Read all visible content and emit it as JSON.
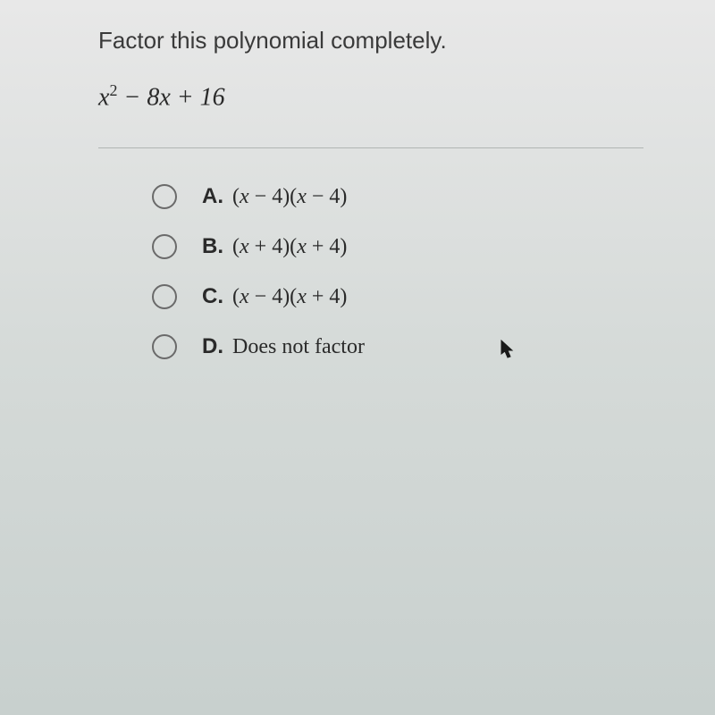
{
  "question": {
    "prompt": "Factor this polynomial completely.",
    "polynomial_html": "<span class='var'>x</span><span class='sup'>2</span> − 8<span class='var'>x</span> + 16"
  },
  "options": [
    {
      "label": "A.",
      "text_html": "(<span class='var'>x</span> − 4)(<span class='var'>x</span> − 4)"
    },
    {
      "label": "B.",
      "text_html": "(<span class='var'>x</span> + 4)(<span class='var'>x</span> + 4)"
    },
    {
      "label": "C.",
      "text_html": "(<span class='var'>x</span> − 4)(<span class='var'>x</span> + 4)"
    },
    {
      "label": "D.",
      "text_html": "Does not factor"
    }
  ],
  "colors": {
    "text": "#2a2a2a",
    "prompt": "#3a3a3a",
    "radio_border": "#6a6a6a",
    "divider": "#b0b5b3",
    "bg_top": "#e8e8e8",
    "bg_bottom": "#c8d0ce"
  },
  "fonts": {
    "prompt_size": 26,
    "polynomial_size": 28,
    "option_size": 24
  }
}
